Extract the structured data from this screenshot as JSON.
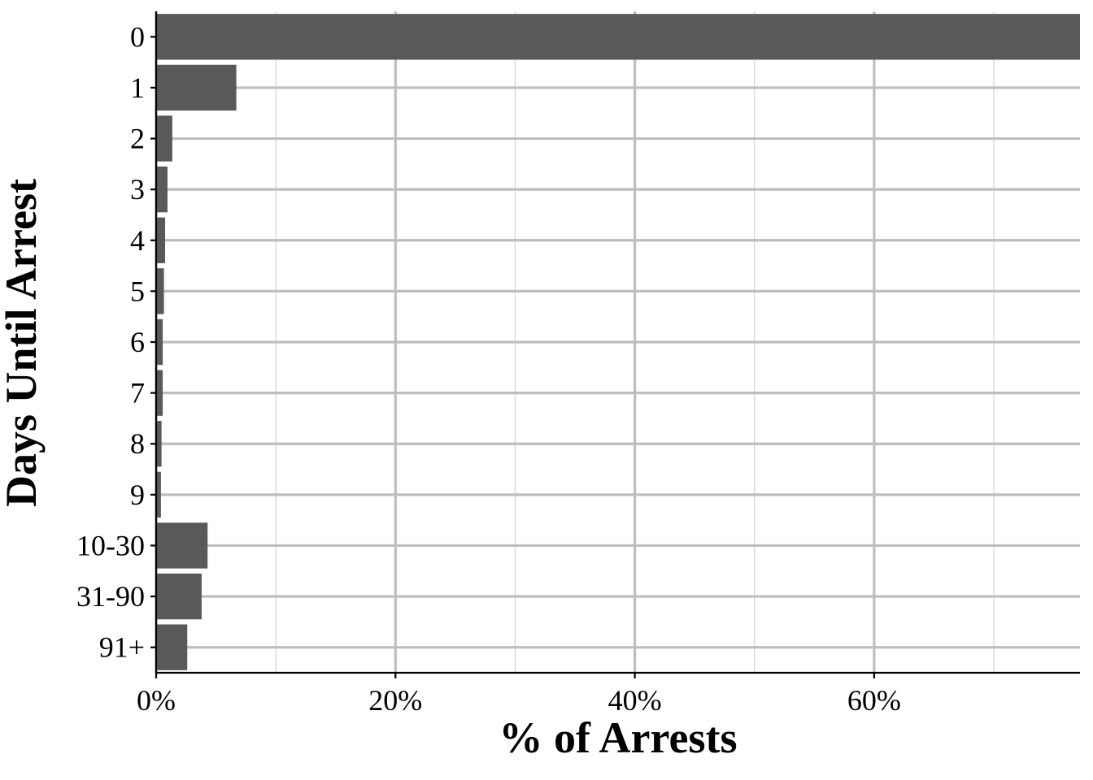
{
  "chart_data": {
    "type": "bar",
    "orientation": "horizontal",
    "categories": [
      "0",
      "1",
      "2",
      "3",
      "4",
      "5",
      "6",
      "7",
      "8",
      "9",
      "10-30",
      "31-90",
      "91+"
    ],
    "values": [
      77.2,
      6.7,
      1.35,
      0.95,
      0.75,
      0.65,
      0.55,
      0.55,
      0.45,
      0.4,
      4.3,
      3.8,
      2.6
    ],
    "xlabel": "% of Arrests",
    "ylabel": "Days Until Arrest",
    "xlim": [
      0,
      77.2
    ],
    "xticks": [
      0,
      20,
      40,
      60
    ],
    "xtick_labels": [
      "0%",
      "20%",
      "40%",
      "60%"
    ],
    "grid": true,
    "colors": {
      "bar": "#595959",
      "grid_major": "#bebebe",
      "grid_minor": "#d3d3d3",
      "axis": "#000000"
    }
  }
}
